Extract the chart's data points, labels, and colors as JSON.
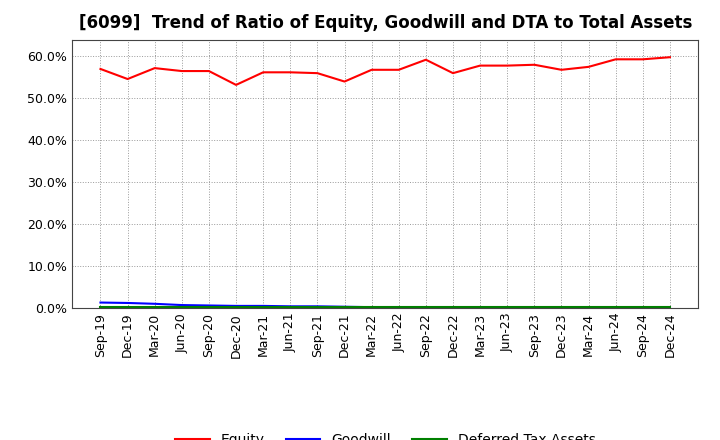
{
  "title": "[6099]  Trend of Ratio of Equity, Goodwill and DTA to Total Assets",
  "x_labels": [
    "Sep-19",
    "Dec-19",
    "Mar-20",
    "Jun-20",
    "Sep-20",
    "Dec-20",
    "Mar-21",
    "Jun-21",
    "Sep-21",
    "Dec-21",
    "Mar-22",
    "Jun-22",
    "Sep-22",
    "Dec-22",
    "Mar-23",
    "Jun-23",
    "Sep-23",
    "Dec-23",
    "Mar-24",
    "Jun-24",
    "Sep-24",
    "Dec-24"
  ],
  "equity": [
    0.57,
    0.546,
    0.572,
    0.565,
    0.565,
    0.532,
    0.562,
    0.562,
    0.56,
    0.54,
    0.568,
    0.568,
    0.592,
    0.56,
    0.578,
    0.578,
    0.58,
    0.568,
    0.575,
    0.593,
    0.593,
    0.598
  ],
  "goodwill": [
    0.013,
    0.012,
    0.01,
    0.007,
    0.006,
    0.005,
    0.005,
    0.004,
    0.004,
    0.003,
    0.002,
    0.001,
    0.001,
    0.001,
    0.001,
    0.001,
    0.001,
    0.001,
    0.001,
    0.0,
    0.0,
    0.0
  ],
  "dta": [
    0.002,
    0.002,
    0.002,
    0.002,
    0.002,
    0.002,
    0.002,
    0.002,
    0.002,
    0.002,
    0.002,
    0.002,
    0.002,
    0.002,
    0.002,
    0.002,
    0.002,
    0.002,
    0.002,
    0.002,
    0.002,
    0.002
  ],
  "equity_color": "#ff0000",
  "goodwill_color": "#0000ff",
  "dta_color": "#008000",
  "ylim_min": 0.0,
  "ylim_max": 0.64,
  "yticks": [
    0.0,
    0.1,
    0.2,
    0.3,
    0.4,
    0.5,
    0.6
  ],
  "background_color": "#ffffff",
  "grid_color": "#999999",
  "legend_labels": [
    "Equity",
    "Goodwill",
    "Deferred Tax Assets"
  ],
  "title_fontsize": 12,
  "tick_fontsize": 9,
  "legend_fontsize": 10,
  "line_width": 1.5
}
